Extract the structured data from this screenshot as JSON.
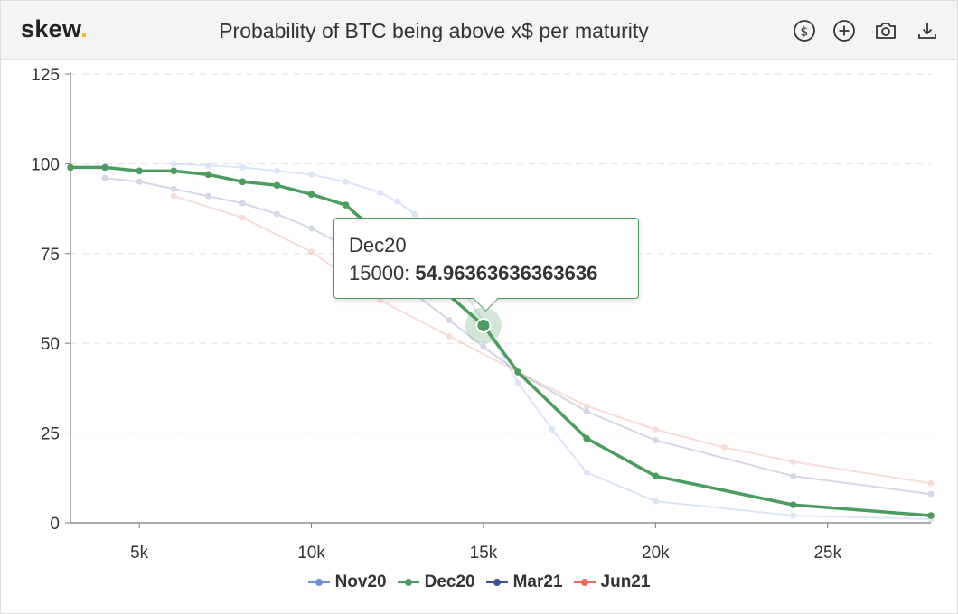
{
  "header": {
    "logo": "skew",
    "logo_dot": ".",
    "title": "Probability of BTC being above x$ per maturity",
    "toolbar": [
      {
        "name": "currency-button",
        "icon": "dollar-circle-icon"
      },
      {
        "name": "add-button",
        "icon": "plus-circle-icon"
      },
      {
        "name": "screenshot-button",
        "icon": "camera-icon"
      },
      {
        "name": "download-button",
        "icon": "download-icon"
      }
    ]
  },
  "tooltip": {
    "series": "Dec20",
    "x_label": "15000:",
    "value": "54.96363636363636"
  },
  "chart_data": {
    "type": "line",
    "title": "Probability of BTC being above x$ per maturity",
    "xlim": [
      3000,
      28000
    ],
    "ylim": [
      0,
      125
    ],
    "x_ticks": [
      5000,
      10000,
      15000,
      20000,
      25000
    ],
    "x_tick_labels": [
      "5k",
      "10k",
      "15k",
      "20k",
      "25k"
    ],
    "y_ticks": [
      0,
      25,
      50,
      75,
      100,
      125
    ],
    "y_tick_labels": [
      "0",
      "25",
      "50",
      "75",
      "100",
      "125"
    ],
    "grid": "horizontal dashed",
    "legend": "bottom-center",
    "highlighted_series": "Dec20",
    "highlighted_point": {
      "x": 15000,
      "y": 54.96363636363636
    },
    "series": [
      {
        "name": "Nov20",
        "color": "#6a8fe0",
        "faded": true,
        "points": [
          [
            6000,
            100
          ],
          [
            7000,
            99.5
          ],
          [
            8000,
            99
          ],
          [
            9000,
            98
          ],
          [
            10000,
            97
          ],
          [
            11000,
            95
          ],
          [
            12000,
            92
          ],
          [
            12500,
            89.5
          ],
          [
            13000,
            86
          ],
          [
            15000,
            56
          ],
          [
            16000,
            39
          ],
          [
            17000,
            26
          ],
          [
            18000,
            14
          ],
          [
            20000,
            6
          ],
          [
            24000,
            2
          ],
          [
            28000,
            1
          ]
        ]
      },
      {
        "name": "Dec20",
        "color": "#4a9d5f",
        "faded": false,
        "points": [
          [
            3000,
            99
          ],
          [
            4000,
            99
          ],
          [
            5000,
            98
          ],
          [
            6000,
            98
          ],
          [
            7000,
            97
          ],
          [
            8000,
            95
          ],
          [
            9000,
            94
          ],
          [
            10000,
            91.5
          ],
          [
            11000,
            88.5
          ],
          [
            15000,
            54.96363636363636
          ],
          [
            16000,
            42
          ],
          [
            18000,
            23.5
          ],
          [
            20000,
            13
          ],
          [
            24000,
            5
          ],
          [
            28000,
            2
          ]
        ]
      },
      {
        "name": "Mar21",
        "color": "#3a5297",
        "faded": true,
        "points": [
          [
            4000,
            96
          ],
          [
            5000,
            95
          ],
          [
            6000,
            93
          ],
          [
            7000,
            91
          ],
          [
            8000,
            89
          ],
          [
            9000,
            86
          ],
          [
            10000,
            82
          ],
          [
            11000,
            77
          ],
          [
            12000,
            71
          ],
          [
            14000,
            56.5
          ],
          [
            15000,
            49
          ],
          [
            16000,
            42
          ],
          [
            18000,
            31
          ],
          [
            20000,
            23
          ],
          [
            24000,
            13
          ],
          [
            28000,
            8
          ]
        ]
      },
      {
        "name": "Jun21",
        "color": "#e8685e",
        "faded": true,
        "points": [
          [
            6000,
            91
          ],
          [
            8000,
            85
          ],
          [
            10000,
            75.5
          ],
          [
            12000,
            62
          ],
          [
            14000,
            52
          ],
          [
            16000,
            42
          ],
          [
            18000,
            32.5
          ],
          [
            20000,
            26
          ],
          [
            22000,
            21
          ],
          [
            24000,
            17
          ],
          [
            28000,
            11
          ]
        ]
      }
    ]
  }
}
